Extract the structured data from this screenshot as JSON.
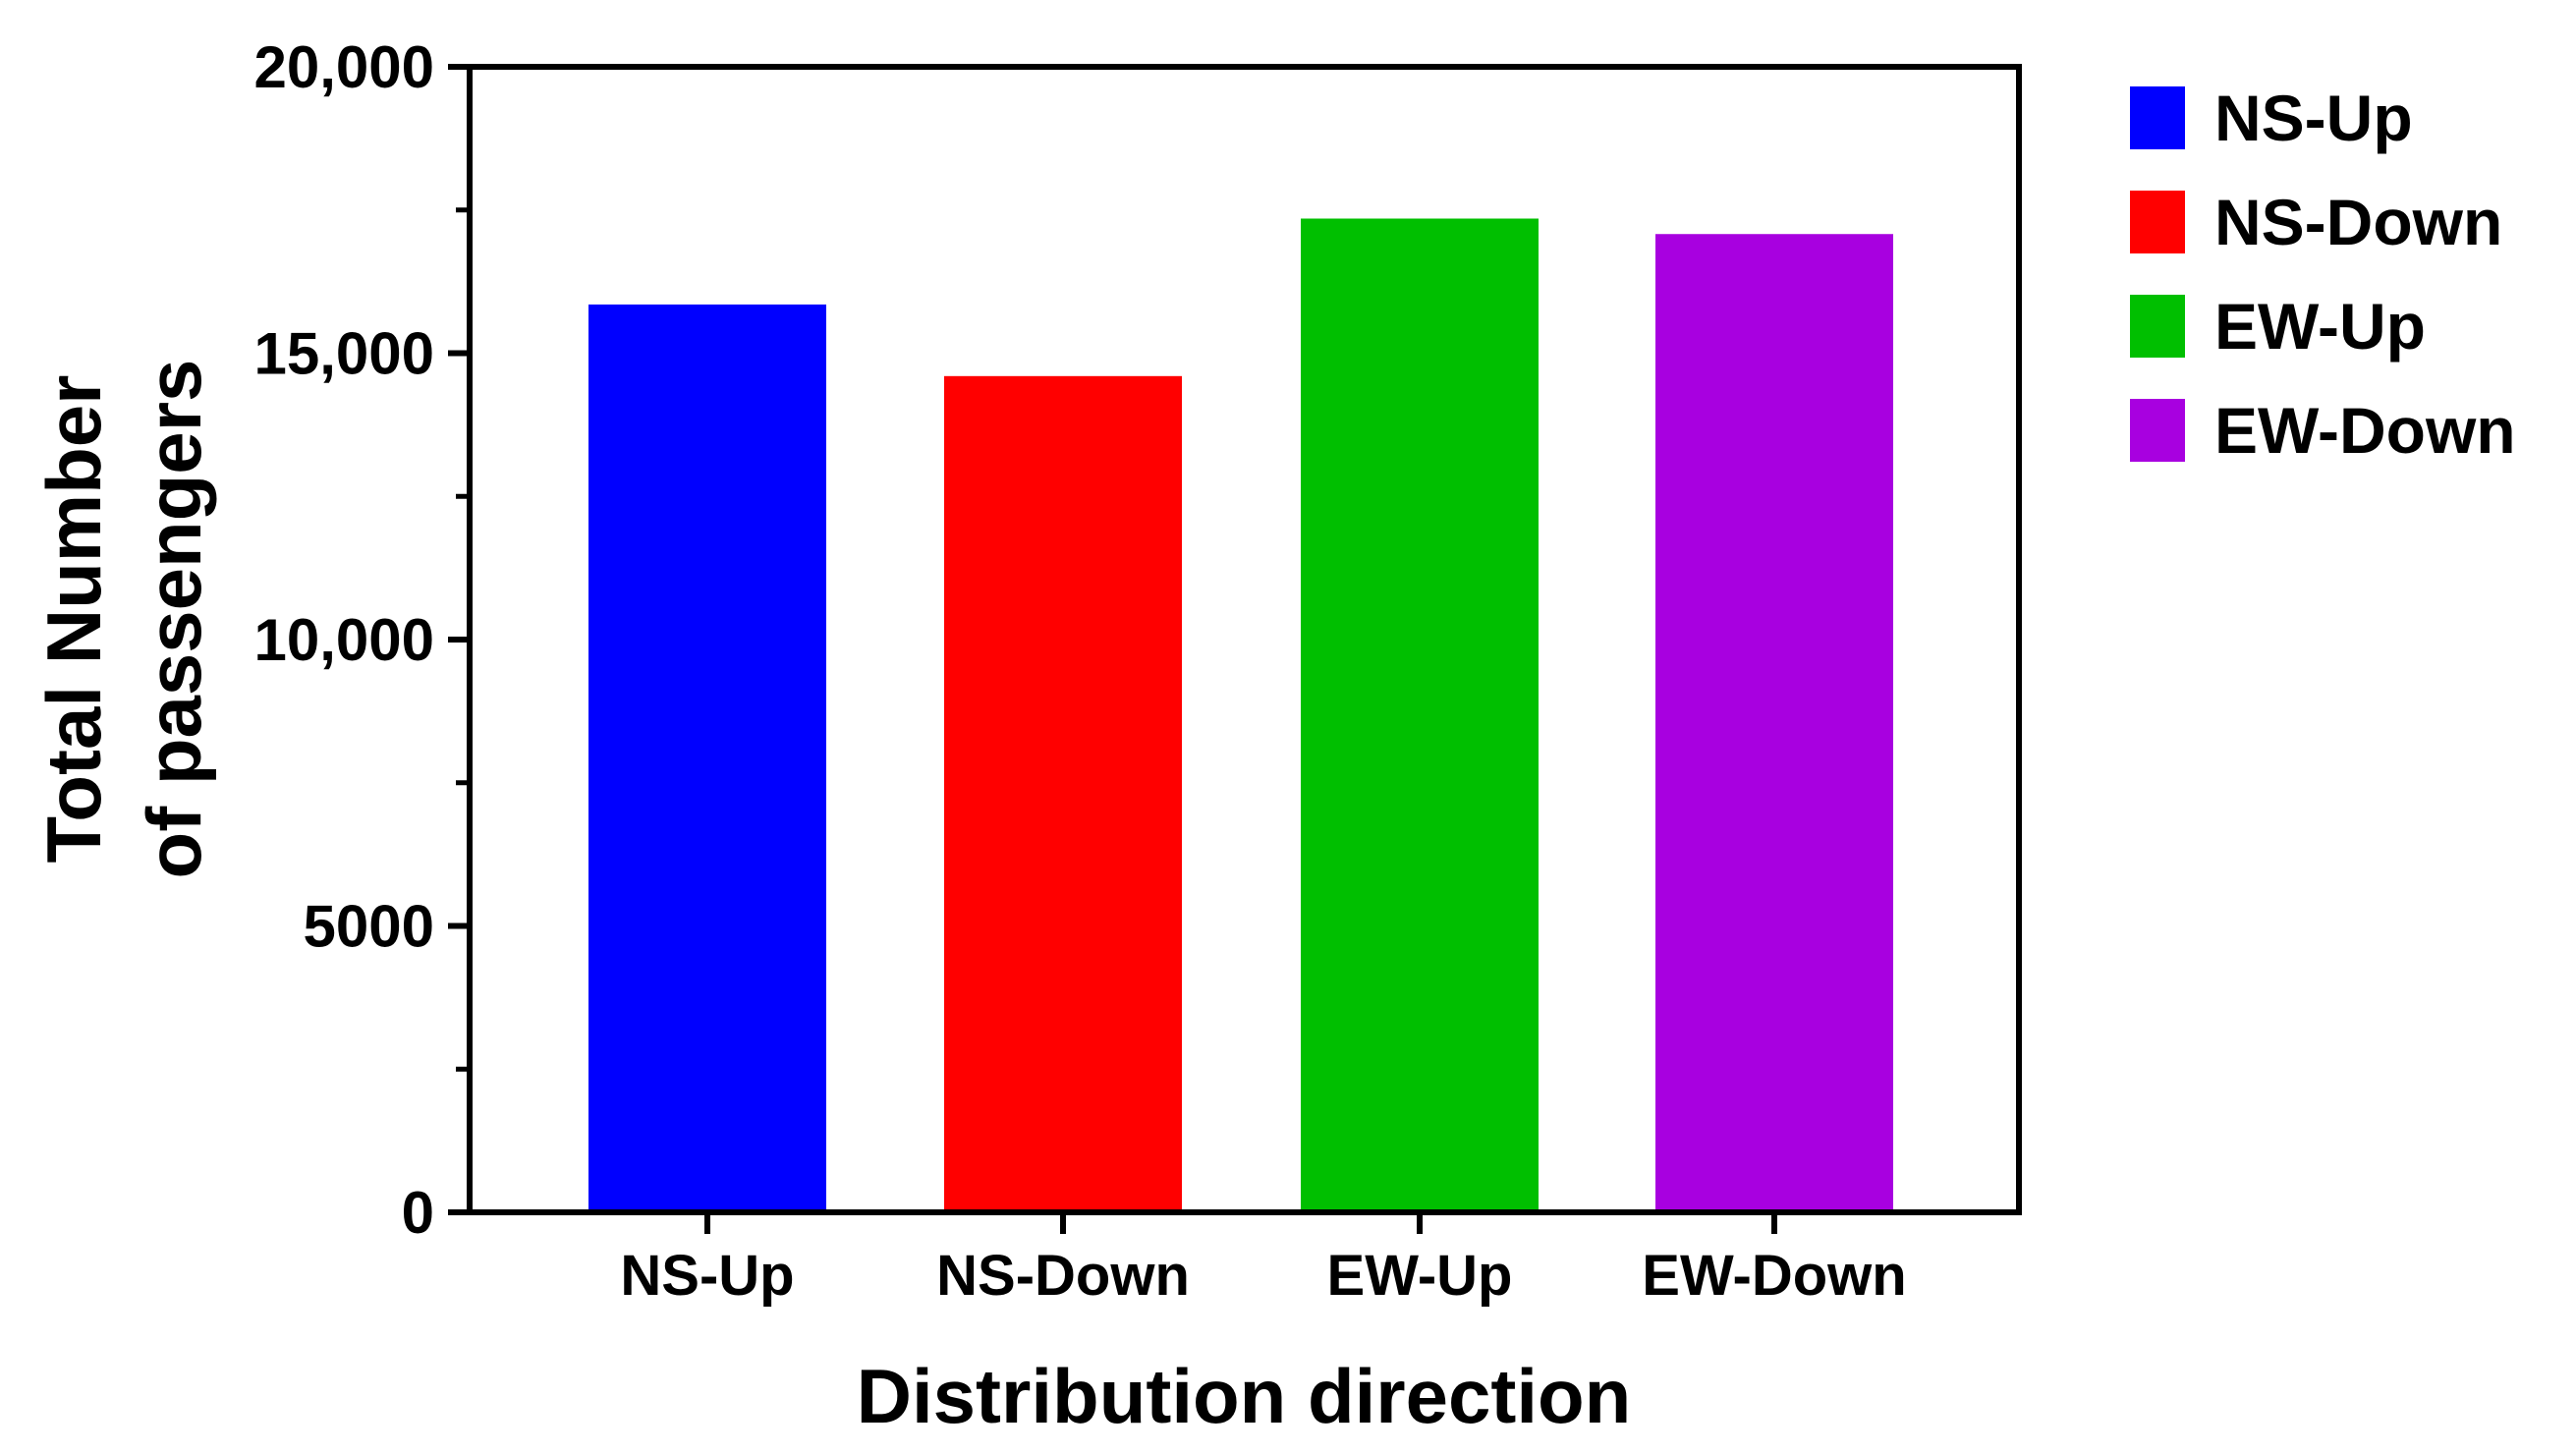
{
  "chart_data": {
    "type": "bar",
    "categories": [
      "NS-Up",
      "NS-Down",
      "EW-Up",
      "EW-Down"
    ],
    "values": [
      15850,
      14600,
      17350,
      17080
    ],
    "colors": [
      "#0000ff",
      "#ff0000",
      "#00bf00",
      "#a800e0"
    ],
    "xlabel": "Distribution direction",
    "ylabel_lines": [
      "Total Number",
      "of passengers"
    ],
    "ylim": [
      0,
      20000
    ],
    "yticks": [
      0,
      5000,
      10000,
      15000,
      20000
    ],
    "ytick_labels": [
      "0",
      "5000",
      "10,000",
      "15,000",
      "20,000"
    ],
    "minor_ytick_step": 2500,
    "grid": false,
    "legend": {
      "position": "top-right",
      "entries": [
        "NS-Up",
        "NS-Down",
        "EW-Up",
        "EW-Down"
      ]
    }
  }
}
